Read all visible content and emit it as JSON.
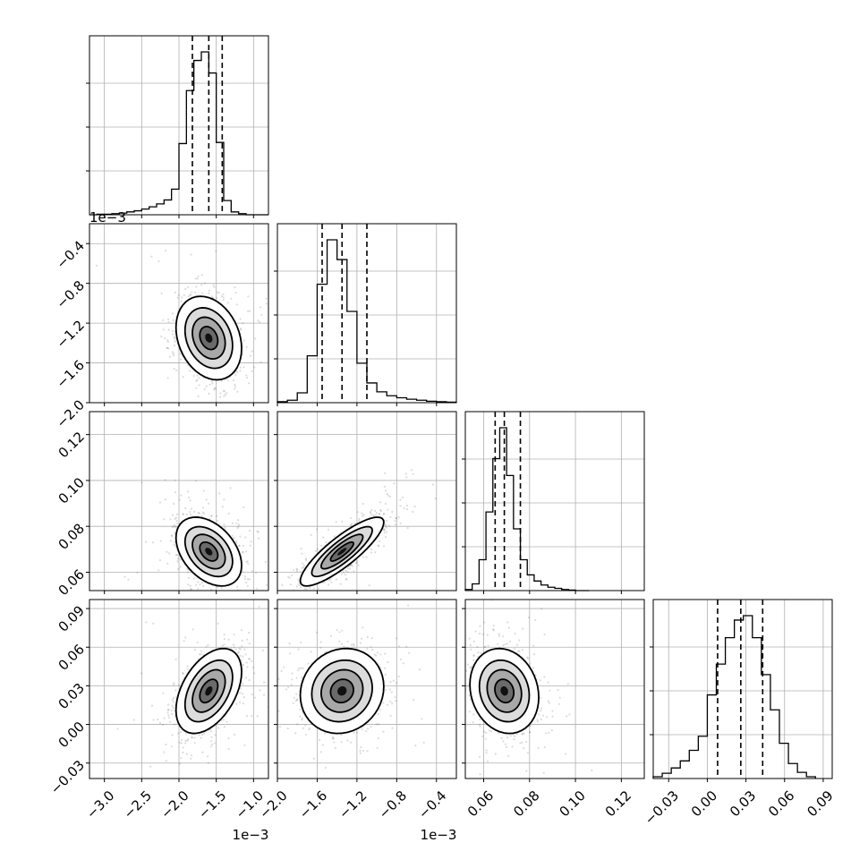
{
  "chart_data": {
    "type": "corner",
    "grid": true,
    "parameters": [
      {
        "range": [
          -3.2,
          -0.8
        ],
        "scale": 0.001,
        "offset_label": "1e−3",
        "median": -1.6,
        "quantiles": [
          -1.82,
          -1.6,
          -1.42
        ],
        "ticks": [
          {
            "v": -3.0,
            "label": "−3.0"
          },
          {
            "v": -2.5,
            "label": "−2.5"
          },
          {
            "v": -2.0,
            "label": "−2.0"
          },
          {
            "v": -1.5,
            "label": "−1.5"
          },
          {
            "v": -1.0,
            "label": "−1.0"
          }
        ],
        "hist": {
          "edges": [
            -3.2,
            -3.1,
            -3.0,
            -2.9,
            -2.8,
            -2.7,
            -2.6,
            -2.5,
            -2.4,
            -2.3,
            -2.2,
            -2.1,
            -2.0,
            -1.9,
            -1.8,
            -1.7,
            -1.6,
            -1.5,
            -1.4,
            -1.3,
            -1.2,
            -1.1,
            -1.0,
            -0.9,
            -0.8
          ],
          "counts": [
            0,
            1,
            1,
            2,
            3,
            5,
            7,
            10,
            14,
            19,
            26,
            45,
            125,
            218,
            271,
            286,
            249,
            127,
            25,
            5,
            2,
            0,
            0,
            0
          ]
        }
      },
      {
        "range": [
          -2.0,
          -0.2
        ],
        "scale": 0.001,
        "offset_label": "1e−3",
        "median": -1.35,
        "quantiles": [
          -1.55,
          -1.35,
          -1.1
        ],
        "ticks": [
          {
            "v": -2.0,
            "label": "−2.0"
          },
          {
            "v": -1.6,
            "label": "−1.6"
          },
          {
            "v": -1.2,
            "label": "−1.2"
          },
          {
            "v": -0.8,
            "label": "−0.8"
          },
          {
            "v": -0.4,
            "label": "−0.4"
          }
        ],
        "hist": {
          "edges": [
            -2.0,
            -1.9,
            -1.8,
            -1.7,
            -1.6,
            -1.5,
            -1.4,
            -1.3,
            -1.2,
            -1.1,
            -1.0,
            -0.9,
            -0.8,
            -0.7,
            -0.6,
            -0.5,
            -0.4,
            -0.3,
            -0.2
          ],
          "counts": [
            2,
            5,
            20,
            95,
            240,
            330,
            290,
            185,
            80,
            40,
            22,
            14,
            10,
            7,
            5,
            3,
            2,
            1
          ]
        }
      },
      {
        "range": [
          0.052,
          0.13
        ],
        "scale": 1,
        "offset_label": "",
        "median": 0.069,
        "quantiles": [
          0.065,
          0.069,
          0.076
        ],
        "ticks": [
          {
            "v": 0.06,
            "label": "0.06"
          },
          {
            "v": 0.08,
            "label": "0.08"
          },
          {
            "v": 0.1,
            "label": "0.10"
          },
          {
            "v": 0.12,
            "label": "0.12"
          }
        ],
        "hist": {
          "edges": [
            0.052,
            0.055,
            0.058,
            0.061,
            0.064,
            0.067,
            0.07,
            0.073,
            0.076,
            0.079,
            0.082,
            0.085,
            0.088,
            0.091,
            0.094,
            0.097,
            0.1,
            0.103,
            0.106
          ],
          "counts": [
            2,
            12,
            55,
            140,
            235,
            290,
            205,
            110,
            55,
            28,
            17,
            10,
            6,
            4,
            2,
            1,
            0,
            0
          ]
        }
      },
      {
        "range": [
          -0.042,
          0.097
        ],
        "scale": 1,
        "offset_label": "",
        "median": 0.026,
        "quantiles": [
          0.008,
          0.026,
          0.043
        ],
        "ticks": [
          {
            "v": -0.03,
            "label": "−0.03"
          },
          {
            "v": 0.0,
            "label": "0.00"
          },
          {
            "v": 0.03,
            "label": "0.03"
          },
          {
            "v": 0.06,
            "label": "0.06"
          },
          {
            "v": 0.09,
            "label": "0.09"
          }
        ],
        "hist": {
          "edges": [
            -0.042,
            -0.035,
            -0.028,
            -0.021,
            -0.014,
            -0.007,
            0.0,
            0.007,
            0.014,
            0.021,
            0.028,
            0.035,
            0.042,
            0.049,
            0.056,
            0.063,
            0.07,
            0.077,
            0.084
          ],
          "counts": [
            2,
            6,
            12,
            20,
            32,
            48,
            95,
            130,
            160,
            180,
            185,
            160,
            118,
            78,
            40,
            17,
            7,
            2
          ]
        }
      }
    ],
    "correlations": [
      [
        1.0,
        -0.25,
        -0.4,
        0.45
      ],
      [
        -0.25,
        1.0,
        0.85,
        0.1
      ],
      [
        -0.4,
        0.85,
        1.0,
        -0.15
      ],
      [
        0.45,
        0.1,
        -0.15,
        1.0
      ]
    ],
    "sigma": [
      0.22,
      0.21,
      0.0075,
      0.0165
    ],
    "scatter_points_per_panel": 900
  }
}
